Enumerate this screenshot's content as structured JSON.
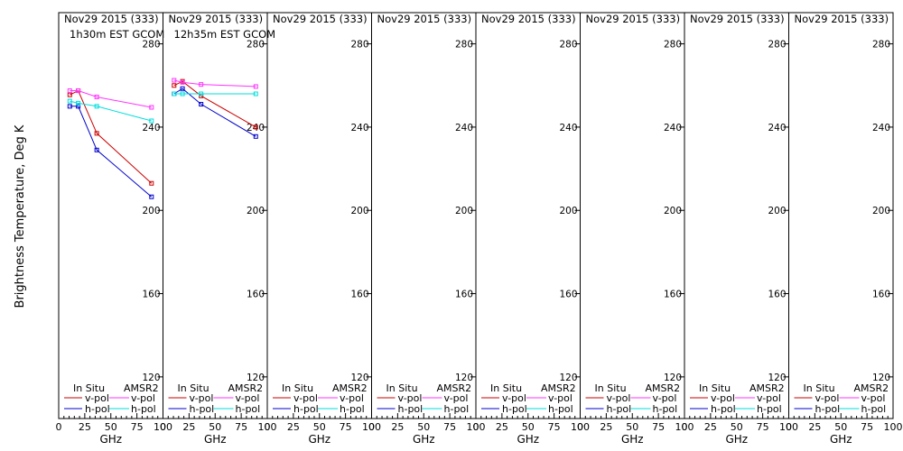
{
  "chart_data": {
    "type": "line",
    "ylabel": "Brightness Temperature, Deg K",
    "xlabel": "GHz",
    "ylim": [
      100,
      295
    ],
    "xlim": [
      0,
      100
    ],
    "yticks": [
      "120",
      "160",
      "200",
      "240",
      "280"
    ],
    "xticks": [
      "0",
      "25",
      "50",
      "75",
      "100"
    ],
    "legend": {
      "insitu_title": "In Situ",
      "amsr2_title": "AMSR2",
      "v_pol": "v-pol",
      "h_pol": "h-pol"
    },
    "colors": {
      "insitu_v": "#cc0000",
      "insitu_h": "#0000cc",
      "amsr2_v": "#ff33ff",
      "amsr2_h": "#00dddd"
    },
    "panels": [
      {
        "title": "Nov29 2015 (333)",
        "subtitle": "1h30m EST GCOM",
        "series": [
          {
            "name": "In Situ v-pol",
            "key": "insitu_v",
            "x": [
              10.65,
              18.7,
              36.5,
              89
            ],
            "y": [
              255.5,
              257.5,
              237,
              213
            ]
          },
          {
            "name": "In Situ h-pol",
            "key": "insitu_h",
            "x": [
              10.65,
              18.7,
              36.5,
              89
            ],
            "y": [
              250,
              250,
              229,
              206.5
            ]
          },
          {
            "name": "AMSR2 v-pol",
            "key": "amsr2_v",
            "x": [
              10.65,
              18.7,
              36.5,
              89
            ],
            "y": [
              257.5,
              257.5,
              254.5,
              249.5
            ]
          },
          {
            "name": "AMSR2 h-pol",
            "key": "amsr2_h",
            "x": [
              10.65,
              18.7,
              36.5,
              89
            ],
            "y": [
              252.5,
              251.5,
              250,
              243
            ]
          }
        ]
      },
      {
        "title": "Nov29 2015 (333)",
        "subtitle": "12h35m EST GCOM",
        "series": [
          {
            "name": "In Situ v-pol",
            "key": "insitu_v",
            "x": [
              10.65,
              18.7,
              36.5,
              89
            ],
            "y": [
              260,
              262,
              255,
              240
            ]
          },
          {
            "name": "In Situ h-pol",
            "key": "insitu_h",
            "x": [
              10.65,
              18.7,
              36.5,
              89
            ],
            "y": [
              256,
              258.5,
              251,
              235.5
            ]
          },
          {
            "name": "AMSR2 v-pol",
            "key": "amsr2_v",
            "x": [
              10.65,
              18.7,
              36.5,
              89
            ],
            "y": [
              262.5,
              261.5,
              260.5,
              259.5
            ]
          },
          {
            "name": "AMSR2 h-pol",
            "key": "amsr2_h",
            "x": [
              10.65,
              18.7,
              36.5,
              89
            ],
            "y": [
              256,
              256,
              256,
              256
            ]
          }
        ]
      },
      {
        "title": "Nov29 2015 (333)",
        "subtitle": "",
        "series": []
      },
      {
        "title": "Nov29 2015 (333)",
        "subtitle": "",
        "series": []
      },
      {
        "title": "Nov29 2015 (333)",
        "subtitle": "",
        "series": []
      },
      {
        "title": "Nov29 2015 (333)",
        "subtitle": "",
        "series": []
      },
      {
        "title": "Nov29 2015 (333)",
        "subtitle": "",
        "series": []
      },
      {
        "title": "Nov29 2015 (333)",
        "subtitle": "",
        "series": []
      }
    ]
  }
}
